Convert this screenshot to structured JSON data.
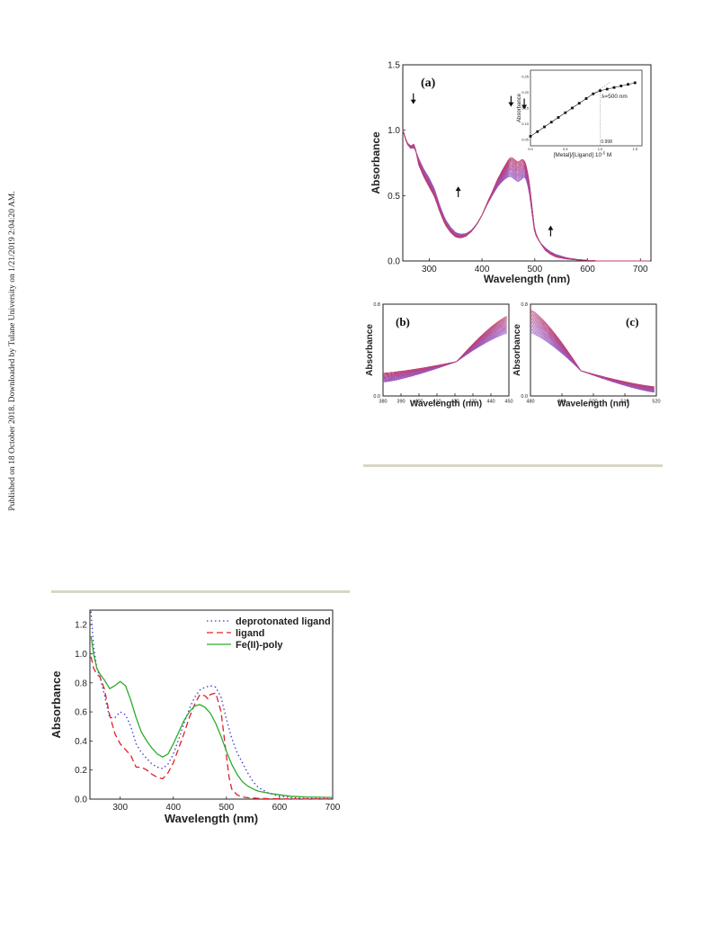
{
  "side_note": "Published on 18 October 2018. Downloaded by Tulane University on 1/21/2019 2:04:20 AM.",
  "chart_data": [
    {
      "id": "a",
      "type": "line",
      "panel_label": "(a)",
      "xlabel": "Wavelength (nm)",
      "ylabel": "Absorbance",
      "xlim": [
        250,
        720
      ],
      "ylim": [
        0,
        1.5
      ],
      "xticks": [
        300,
        400,
        500,
        600,
        700
      ],
      "yticks": [
        0.0,
        0.5,
        1.0,
        1.5
      ],
      "ytick_labels": [
        "0.0",
        "0.5",
        "1.0",
        "1.5"
      ],
      "series_count": 20,
      "base_curve": {
        "x": [
          250,
          258,
          265,
          272,
          280,
          290,
          300,
          310,
          320,
          330,
          340,
          350,
          360,
          370,
          380,
          390,
          400,
          410,
          420,
          430,
          440,
          450,
          455,
          462,
          468,
          475,
          480,
          485,
          490,
          495,
          500,
          510,
          520,
          530,
          540,
          560,
          580,
          600,
          620,
          650,
          680,
          720
        ],
        "y": [
          1.0,
          0.9,
          0.87,
          0.88,
          0.76,
          0.67,
          0.6,
          0.52,
          0.4,
          0.3,
          0.24,
          0.2,
          0.19,
          0.2,
          0.23,
          0.28,
          0.35,
          0.44,
          0.52,
          0.6,
          0.66,
          0.71,
          0.72,
          0.7,
          0.68,
          0.7,
          0.71,
          0.66,
          0.55,
          0.38,
          0.22,
          0.14,
          0.09,
          0.06,
          0.04,
          0.02,
          0.01,
          0.005,
          0.0,
          0.0,
          0.0,
          0.0
        ]
      },
      "spread": {
        "x": [
          250,
          265,
          272,
          280,
          290,
          300,
          320,
          340,
          360,
          380,
          400,
          420,
          440,
          455,
          475,
          490,
          500,
          520,
          540,
          560,
          600
        ],
        "dy": [
          0.0,
          0.02,
          0.03,
          -0.05,
          -0.06,
          -0.07,
          -0.05,
          -0.04,
          -0.03,
          -0.01,
          0.0,
          0.03,
          0.09,
          0.15,
          0.15,
          0.08,
          0.02,
          -0.02,
          -0.02,
          -0.01,
          0.0
        ]
      },
      "arrows": [
        {
          "x": 270,
          "y": 1.22,
          "dir": "down"
        },
        {
          "x": 355,
          "y": 0.55,
          "dir": "up"
        },
        {
          "x": 455,
          "y": 1.2,
          "dir": "down"
        },
        {
          "x": 480,
          "y": 1.18,
          "dir": "down"
        },
        {
          "x": 530,
          "y": 0.25,
          "dir": "up"
        }
      ],
      "inset": {
        "xlabel": "[Metal]/[Ligand] 10",
        "xlabel_exp": "-5",
        "xlabel_unit": " M",
        "ylabel": "Absorbance",
        "annotation": "λ=500 nm",
        "marker_label": "0.998",
        "xlim": [
          0.0,
          1.6
        ],
        "ylim": [
          0.03,
          0.27
        ],
        "xticks": [
          0.0,
          0.5,
          1.0,
          1.5
        ],
        "xtick_labels": [
          "0.0",
          "0.5",
          "1.0",
          "1.5"
        ],
        "yticks": [
          0.05,
          0.1,
          0.15,
          0.2,
          0.25
        ],
        "ytick_labels": [
          "0.05",
          "0.10",
          "0.15",
          "0.20",
          "0.25"
        ],
        "x": [
          0.0,
          0.1,
          0.2,
          0.3,
          0.4,
          0.5,
          0.6,
          0.7,
          0.8,
          0.9,
          1.0,
          1.1,
          1.2,
          1.3,
          1.4,
          1.5
        ],
        "y": [
          0.06,
          0.075,
          0.09,
          0.105,
          0.12,
          0.135,
          0.15,
          0.165,
          0.18,
          0.195,
          0.205,
          0.21,
          0.215,
          0.22,
          0.225,
          0.23
        ],
        "breakpoint": 0.998
      }
    },
    {
      "id": "b",
      "type": "line",
      "panel_label": "(b)",
      "xlabel": "Wavelength (nm)",
      "ylabel": "Absorbance",
      "xlim": [
        380,
        450
      ],
      "ylim": [
        0.0,
        0.8
      ],
      "xticks": [
        380,
        390,
        400,
        410,
        420,
        430,
        440,
        450
      ],
      "yticks": [
        0.0,
        0.8
      ],
      "ytick_labels": [
        "0.0",
        "0.8"
      ],
      "series_count": 20,
      "isosbestic": [
        421,
        0.3
      ],
      "start_range": [
        0.12,
        0.2
      ],
      "end_range": [
        0.55,
        0.7
      ]
    },
    {
      "id": "c",
      "type": "line",
      "panel_label": "(c)",
      "xlabel": "Wavelength (nm)",
      "ylabel": "Absorbance",
      "xlim": [
        480,
        520
      ],
      "ylim": [
        0.0,
        0.8
      ],
      "xticks": [
        480,
        490,
        500,
        510,
        520
      ],
      "yticks": [
        0.0,
        0.8
      ],
      "ytick_labels": [
        "0.0",
        "0.8"
      ],
      "series_count": 20,
      "isosbestic": [
        496,
        0.22
      ],
      "start_range": [
        0.55,
        0.75
      ],
      "end_range": [
        0.03,
        0.08
      ]
    },
    {
      "id": "comparison",
      "type": "line",
      "xlabel": "Wavelength (nm)",
      "ylabel": "Absorbance",
      "xlim": [
        243,
        700
      ],
      "ylim": [
        0.0,
        1.3
      ],
      "xticks": [
        300,
        400,
        500,
        600,
        700
      ],
      "yticks": [
        0.0,
        0.2,
        0.4,
        0.6,
        0.8,
        1.0,
        1.2
      ],
      "ytick_labels": [
        "0.0",
        "0.2",
        "0.4",
        "0.6",
        "0.8",
        "1.0",
        "1.2"
      ],
      "legend": "top-right",
      "series": [
        {
          "name": "deprotonated ligand",
          "color": "#3a3ac8",
          "dash": "1.5,3",
          "x": [
            245,
            250,
            256,
            262,
            270,
            280,
            290,
            300,
            310,
            320,
            330,
            340,
            350,
            360,
            370,
            380,
            390,
            400,
            410,
            420,
            430,
            440,
            450,
            460,
            470,
            480,
            490,
            500,
            510,
            520,
            530,
            540,
            550,
            560,
            580,
            600,
            620,
            650,
            700
          ],
          "y": [
            1.29,
            1.05,
            0.9,
            0.84,
            0.72,
            0.56,
            0.56,
            0.6,
            0.58,
            0.5,
            0.38,
            0.32,
            0.28,
            0.24,
            0.22,
            0.21,
            0.24,
            0.31,
            0.41,
            0.52,
            0.62,
            0.7,
            0.75,
            0.77,
            0.78,
            0.77,
            0.7,
            0.55,
            0.42,
            0.32,
            0.25,
            0.18,
            0.12,
            0.08,
            0.04,
            0.02,
            0.01,
            0.005,
            0.003
          ]
        },
        {
          "name": "ligand",
          "color": "#e0202a",
          "dash": "7,4",
          "x": [
            245,
            250,
            256,
            262,
            270,
            280,
            290,
            300,
            310,
            320,
            330,
            340,
            350,
            360,
            370,
            380,
            390,
            400,
            410,
            420,
            430,
            440,
            450,
            460,
            465,
            470,
            480,
            490,
            500,
            505,
            510,
            520,
            530,
            540,
            560,
            580,
            600,
            620,
            650,
            700
          ],
          "y": [
            0.98,
            0.9,
            0.86,
            0.84,
            0.76,
            0.58,
            0.45,
            0.38,
            0.34,
            0.3,
            0.22,
            0.22,
            0.2,
            0.17,
            0.15,
            0.14,
            0.18,
            0.25,
            0.35,
            0.45,
            0.56,
            0.65,
            0.72,
            0.71,
            0.69,
            0.72,
            0.73,
            0.6,
            0.3,
            0.15,
            0.07,
            0.03,
            0.015,
            0.01,
            0.005,
            0.003,
            0.002,
            0.001,
            0.001,
            0.001
          ]
        },
        {
          "name": "Fe(II)-poly",
          "color": "#2eaa2e",
          "dash": "",
          "x": [
            245,
            250,
            256,
            262,
            270,
            280,
            290,
            300,
            310,
            320,
            330,
            340,
            350,
            360,
            370,
            380,
            390,
            400,
            410,
            420,
            430,
            440,
            450,
            460,
            470,
            480,
            490,
            500,
            510,
            520,
            530,
            540,
            550,
            560,
            580,
            600,
            620,
            650,
            700
          ],
          "y": [
            1.12,
            1.0,
            0.9,
            0.86,
            0.82,
            0.76,
            0.78,
            0.81,
            0.78,
            0.68,
            0.56,
            0.46,
            0.4,
            0.35,
            0.31,
            0.29,
            0.31,
            0.38,
            0.46,
            0.54,
            0.6,
            0.64,
            0.65,
            0.63,
            0.59,
            0.52,
            0.43,
            0.33,
            0.24,
            0.17,
            0.12,
            0.09,
            0.07,
            0.055,
            0.04,
            0.03,
            0.02,
            0.015,
            0.012
          ]
        }
      ]
    }
  ]
}
